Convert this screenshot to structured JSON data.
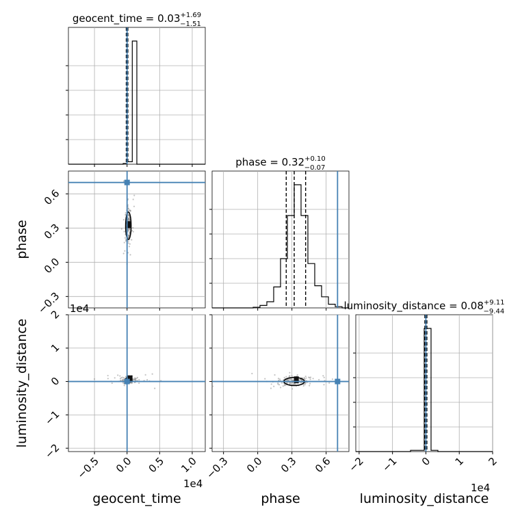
{
  "chart_data": {
    "type": "corner",
    "parameters": [
      "geocent_time",
      "phase",
      "luminosity_distance"
    ],
    "injection_values": {
      "geocent_time": 0.0,
      "phase": 0.7,
      "luminosity_distance": 0.0
    },
    "truth_color": "#4682b4",
    "grid": true,
    "titles": [
      {
        "param": "geocent_time",
        "prefix": "geocent_time = ",
        "median": "0.03",
        "plus": "+1.69",
        "minus": "−1.51"
      },
      {
        "param": "phase",
        "prefix": "phase = ",
        "median": "0.32",
        "plus": "+0.10",
        "minus": "−0.07"
      },
      {
        "param": "luminosity_distance",
        "prefix": "luminosity_distance = ",
        "median": "0.08",
        "plus": "+9.11",
        "minus": "−9.44"
      }
    ],
    "axes": {
      "geocent_time": {
        "range": [
          -0.9,
          1.2
        ],
        "ticks": [
          -0.5,
          0.0,
          0.5,
          1.0
        ],
        "tick_labels": [
          "−0.5",
          "0.0",
          "0.5",
          "1.0"
        ],
        "offset_label": "1e4",
        "xlabel": "geocent_time"
      },
      "phase": {
        "range": [
          -0.4,
          0.8
        ],
        "ticks": [
          -0.3,
          0.0,
          0.3,
          0.6
        ],
        "tick_labels": [
          "−0.3",
          "0.0",
          "0.3",
          "0.6"
        ],
        "xlabel": "phase",
        "ylabel": "phase"
      },
      "luminosity_distance": {
        "range": [
          -2.1,
          2.0
        ],
        "ticks": [
          -2,
          -1,
          0,
          1,
          2
        ],
        "tick_labels": [
          "−2",
          "−1",
          "0",
          "1",
          "2"
        ],
        "offset_label": "1e4",
        "xlabel": "luminosity_distance",
        "ylabel": "luminosity_distance"
      }
    },
    "histograms": {
      "geocent_time": {
        "bin_edges": [
          -0.9,
          -0.795,
          -0.69,
          -0.585,
          -0.48,
          -0.375,
          -0.27,
          -0.165,
          -0.06,
          0.0,
          0.08,
          0.15,
          0.255,
          0.36,
          0.465,
          0.57,
          0.675,
          0.78,
          0.885,
          0.99,
          1.2
        ],
        "counts": [
          0,
          0,
          0,
          0,
          0,
          0,
          0,
          0,
          0.006,
          0.02,
          1.0,
          0,
          0,
          0,
          0,
          0,
          0,
          0,
          0,
          0
        ],
        "quantiles": [
          -0.012,
          0.0,
          0.012
        ]
      },
      "phase": {
        "bin_edges": [
          -0.4,
          -0.34,
          -0.28,
          -0.22,
          -0.16,
          -0.1,
          -0.04,
          0.02,
          0.08,
          0.14,
          0.2,
          0.26,
          0.32,
          0.38,
          0.44,
          0.5,
          0.56,
          0.62,
          0.68,
          0.74,
          0.8
        ],
        "counts": [
          0,
          0,
          0,
          0,
          0,
          0,
          0.005,
          0.02,
          0.05,
          0.17,
          0.4,
          0.75,
          1.0,
          0.75,
          0.36,
          0.18,
          0.09,
          0.03,
          0.01,
          0
        ],
        "quantiles": [
          0.25,
          0.32,
          0.42
        ]
      },
      "luminosity_distance": {
        "bin_edges": [
          -2.1,
          -1.895,
          -1.69,
          -1.485,
          -1.28,
          -1.075,
          -0.87,
          -0.665,
          -0.46,
          -0.255,
          -0.05,
          0.155,
          0.36,
          0.565,
          0.77,
          0.975,
          1.18,
          1.385,
          1.59,
          1.795,
          2.0
        ],
        "counts": [
          0,
          0,
          0,
          0,
          0,
          0,
          0,
          0,
          0.01,
          0.01,
          1.0,
          0.01,
          0,
          0,
          0,
          0,
          0,
          0,
          0,
          0
        ],
        "quantiles": [
          -0.03,
          0.0,
          0.03
        ]
      }
    },
    "joint": [
      {
        "x": "geocent_time",
        "y": "phase",
        "center": [
          0.02,
          0.32
        ],
        "spread": [
          0.02,
          0.09
        ],
        "contour": [
          0.035,
          0.12
        ],
        "dense": [
          0.01,
          0.33
        ]
      },
      {
        "x": "geocent_time",
        "y": "luminosity_distance",
        "center": [
          0.02,
          0.05
        ],
        "spread": [
          0.06,
          0.05
        ],
        "contour": [
          0.02,
          0.04
        ],
        "dense": [
          0.03,
          0.08
        ]
      },
      {
        "x": "phase",
        "y": "luminosity_distance",
        "center": [
          0.32,
          0.0
        ],
        "spread": [
          0.09,
          0.08
        ],
        "contour": [
          0.09,
          0.12
        ],
        "dense": [
          0.33,
          0.05
        ]
      }
    ]
  }
}
